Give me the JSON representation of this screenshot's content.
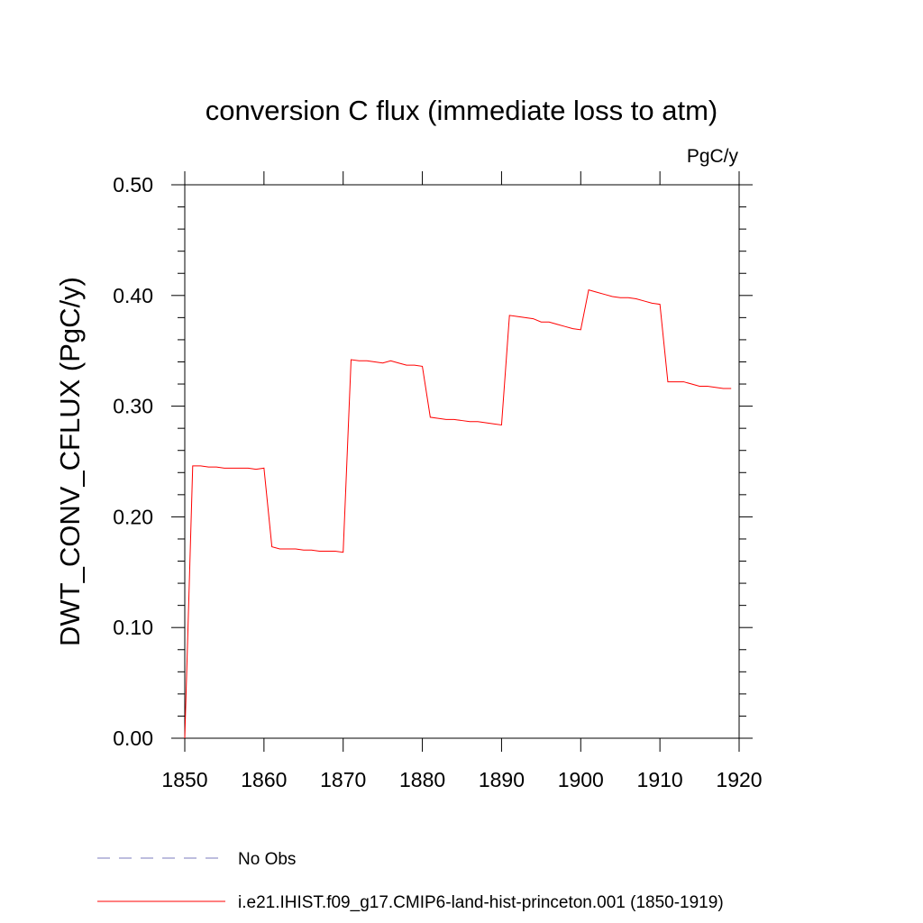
{
  "chart_data": {
    "type": "line",
    "title": "conversion C flux (immediate loss to atm)",
    "units": "PgC/y",
    "xlabel": "",
    "ylabel": "DWT_CONV_CFLUX  (PgC/y)",
    "xlim": [
      1850,
      1920
    ],
    "ylim": [
      0.0,
      0.5
    ],
    "x_ticks": [
      1850,
      1860,
      1870,
      1880,
      1890,
      1900,
      1910,
      1920
    ],
    "x_tick_labels": [
      "1850",
      "1860",
      "1870",
      "1880",
      "1890",
      "1900",
      "1910",
      "1920"
    ],
    "y_ticks": [
      0.0,
      0.1,
      0.2,
      0.3,
      0.4,
      0.5
    ],
    "y_tick_labels": [
      "0.00",
      "0.10",
      "0.20",
      "0.30",
      "0.40",
      "0.50"
    ],
    "grid": false,
    "legend_position": "bottom-left",
    "series": [
      {
        "name": "No Obs",
        "color": "#7b7bbd",
        "dash": "dashed",
        "x": [],
        "y": []
      },
      {
        "name": "i.e21.IHIST.f09_g17.CMIP6-land-hist-princeton.001 (1850-1919)",
        "color": "#ff0000",
        "dash": "solid",
        "x": [
          1850,
          1851,
          1852,
          1853,
          1854,
          1855,
          1856,
          1857,
          1858,
          1859,
          1860,
          1861,
          1862,
          1863,
          1864,
          1865,
          1866,
          1867,
          1868,
          1869,
          1870,
          1871,
          1872,
          1873,
          1874,
          1875,
          1876,
          1877,
          1878,
          1879,
          1880,
          1881,
          1882,
          1883,
          1884,
          1885,
          1886,
          1887,
          1888,
          1889,
          1890,
          1891,
          1892,
          1893,
          1894,
          1895,
          1896,
          1897,
          1898,
          1899,
          1900,
          1901,
          1902,
          1903,
          1904,
          1905,
          1906,
          1907,
          1908,
          1909,
          1910,
          1911,
          1912,
          1913,
          1914,
          1915,
          1916,
          1917,
          1918,
          1919
        ],
        "y": [
          0.0,
          0.246,
          0.246,
          0.245,
          0.245,
          0.244,
          0.244,
          0.244,
          0.244,
          0.243,
          0.244,
          0.173,
          0.171,
          0.171,
          0.171,
          0.17,
          0.17,
          0.169,
          0.169,
          0.169,
          0.168,
          0.342,
          0.341,
          0.341,
          0.34,
          0.339,
          0.341,
          0.339,
          0.337,
          0.337,
          0.336,
          0.29,
          0.289,
          0.288,
          0.288,
          0.287,
          0.286,
          0.286,
          0.285,
          0.284,
          0.283,
          0.382,
          0.381,
          0.38,
          0.379,
          0.376,
          0.376,
          0.374,
          0.372,
          0.37,
          0.369,
          0.405,
          0.403,
          0.401,
          0.399,
          0.398,
          0.398,
          0.397,
          0.395,
          0.393,
          0.392,
          0.322,
          0.322,
          0.322,
          0.32,
          0.318,
          0.318,
          0.317,
          0.316,
          0.316
        ]
      }
    ]
  }
}
